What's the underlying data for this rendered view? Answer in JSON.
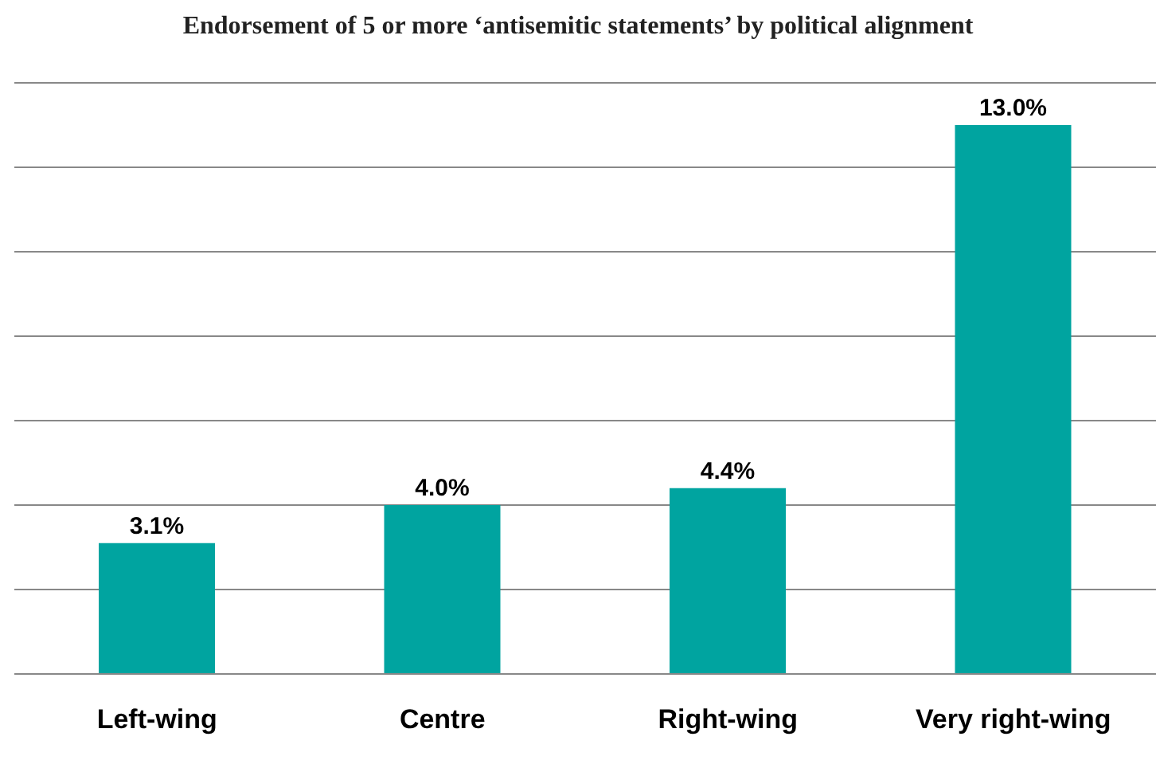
{
  "chart_data": {
    "type": "bar",
    "title": "Endorsement of 5 or more ‘antisemitic statements’ by political alignment",
    "categories": [
      "Left-wing",
      "Centre",
      "Right-wing",
      "Very right-wing"
    ],
    "values": [
      3.1,
      4.0,
      4.4,
      13.0
    ],
    "value_labels": [
      "3.1%",
      "4.0%",
      "4.4%",
      "13.0%"
    ],
    "color": "#00a4a0",
    "ylim": [
      0,
      14
    ],
    "grid": "y",
    "tick_labels": "x"
  }
}
